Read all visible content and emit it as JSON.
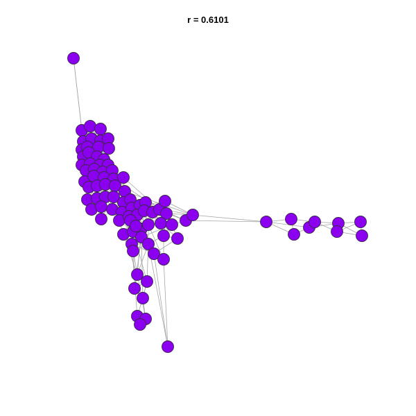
{
  "title": "r = 0.6101",
  "colors": {
    "node_fill": "#8b00ef",
    "node_stroke": "#3a2a4a",
    "edge": "#a6a6a6",
    "background": "#ffffff"
  }
}
